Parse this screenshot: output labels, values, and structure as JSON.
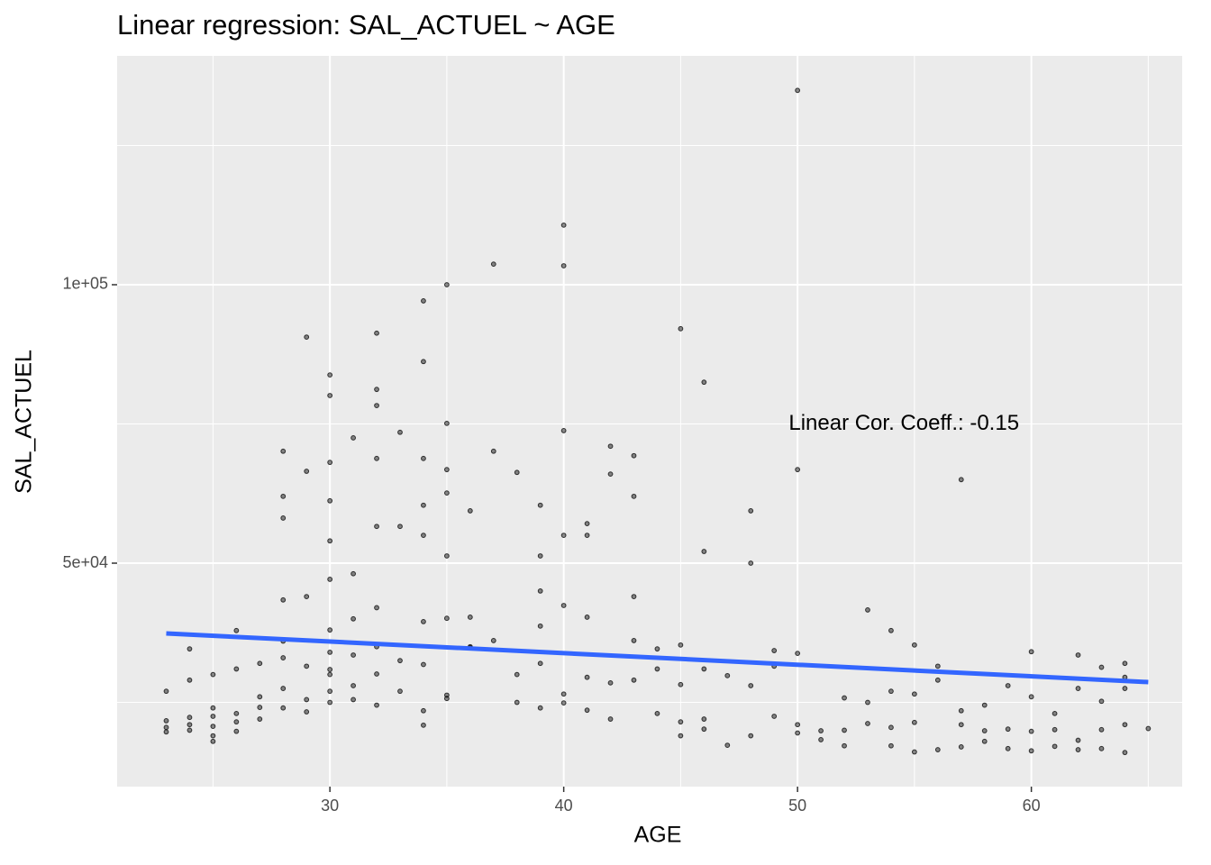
{
  "chart_data": {
    "type": "scatter",
    "title": "Linear regression: SAL_ACTUEL ~ AGE",
    "x_label": "AGE",
    "y_label": "SAL_ACTUEL",
    "xlim": [
      20.9,
      66.45
    ],
    "ylim": [
      9874,
      141097
    ],
    "xticks": [
      30,
      40,
      50,
      60
    ],
    "yticks": [
      {
        "value": 50000,
        "label": "5e+04"
      },
      {
        "value": 100000,
        "label": "1e+05"
      }
    ],
    "x_minor_ticks": [
      25,
      35,
      45,
      55,
      65
    ],
    "y_minor_ticks": [
      25000,
      75000,
      125000
    ],
    "grid": true,
    "point_color": "#000000",
    "series": [
      {
        "x": [
          50,
          40,
          40,
          37,
          35,
          34,
          45,
          32,
          29,
          34,
          30,
          46,
          32,
          30,
          32,
          35,
          40,
          33,
          31,
          42,
          28,
          37,
          43,
          32,
          34,
          30,
          35,
          50,
          38,
          42,
          57,
          29,
          35,
          28,
          43,
          30,
          34,
          39,
          36,
          48,
          28,
          41,
          33,
          32,
          40,
          41,
          34,
          30,
          46,
          35,
          39,
          48,
          31,
          30,
          39,
          43,
          28,
          40,
          53,
          36,
          41,
          35,
          34,
          39,
          26,
          54,
          37,
          43,
          55,
          45,
          36,
          24,
          44,
          60,
          50,
          49,
          62,
          64,
          63,
          30,
          32,
          45,
          35,
          40,
          27,
          29,
          25,
          23,
          34,
          46,
          23,
          23,
          24,
          24,
          24,
          25,
          25,
          25,
          25,
          26,
          26,
          26,
          27,
          27,
          28,
          28,
          29,
          30,
          30,
          31,
          31,
          32,
          33,
          34,
          35,
          38,
          39,
          40,
          41,
          42,
          44,
          45,
          45,
          46,
          47,
          48,
          49,
          50,
          50,
          51,
          51,
          52,
          52,
          53,
          54,
          54,
          55,
          55,
          56,
          57,
          57,
          58,
          58,
          59,
          59,
          60,
          60,
          61,
          61,
          62,
          62,
          63,
          63,
          64,
          64,
          65,
          23,
          24,
          25,
          26,
          27,
          28,
          29,
          30,
          31,
          32,
          33,
          34,
          36,
          38,
          39,
          41,
          42,
          43,
          44,
          46,
          47,
          48,
          49,
          52,
          53,
          54,
          55,
          56,
          57,
          58,
          59,
          60,
          61,
          62,
          63,
          64,
          64,
          56,
          28,
          30,
          31,
          32,
          29,
          30
        ],
        "values": [
          134900,
          110700,
          103400,
          103700,
          100000,
          97100,
          92100,
          91300,
          90600,
          86200,
          83800,
          82500,
          81200,
          80100,
          78300,
          75100,
          73800,
          73500,
          72500,
          71000,
          70100,
          70100,
          69300,
          68800,
          68800,
          68100,
          66800,
          66800,
          66300,
          66000,
          65000,
          66500,
          62600,
          62000,
          62000,
          61200,
          60400,
          60400,
          59400,
          59400,
          58100,
          57100,
          56600,
          56600,
          55000,
          55000,
          55000,
          54000,
          52100,
          51300,
          51300,
          50000,
          48100,
          47100,
          45000,
          44000,
          43400,
          42400,
          41600,
          40300,
          40300,
          40100,
          39500,
          38700,
          37900,
          37900,
          36100,
          36100,
          35300,
          35300,
          35000,
          34600,
          34600,
          34100,
          33800,
          34300,
          33500,
          32000,
          31300,
          30900,
          30100,
          28200,
          25700,
          24900,
          24100,
          23300,
          22500,
          21700,
          20900,
          20200,
          20500,
          19700,
          21000,
          20000,
          22300,
          20700,
          19000,
          18000,
          24000,
          21500,
          19800,
          23000,
          22000,
          26000,
          24000,
          27500,
          25500,
          25000,
          27000,
          25500,
          28000,
          24500,
          27000,
          23500,
          26300,
          25000,
          24000,
          26500,
          23600,
          22000,
          23000,
          21500,
          19000,
          22000,
          17300,
          19000,
          22500,
          19500,
          21000,
          19900,
          18300,
          17200,
          20000,
          21200,
          17200,
          20500,
          16100,
          21400,
          16500,
          17000,
          21000,
          18000,
          19900,
          16700,
          20200,
          16300,
          19800,
          17100,
          20100,
          16500,
          18200,
          16700,
          20100,
          16000,
          21000,
          20300,
          27000,
          29000,
          30000,
          31000,
          32000,
          33000,
          31500,
          34000,
          33500,
          35000,
          32500,
          31800,
          34800,
          30000,
          32000,
          29500,
          28500,
          29000,
          31000,
          31000,
          29800,
          28000,
          31500,
          25800,
          25000,
          27000,
          26500,
          29000,
          23500,
          24500,
          28000,
          26000,
          23000,
          27500,
          25200,
          29500,
          27500,
          31500,
          36000,
          38000,
          40000,
          42000,
          44000,
          30000
        ]
      }
    ],
    "regression": {
      "color": "#3366FF",
      "x": [
        23,
        65
      ],
      "values": [
        37380,
        28642
      ]
    },
    "annotation": {
      "text": "Linear Cor. Coeff.: -0.15",
      "x": 54.55,
      "y": 75000
    }
  }
}
